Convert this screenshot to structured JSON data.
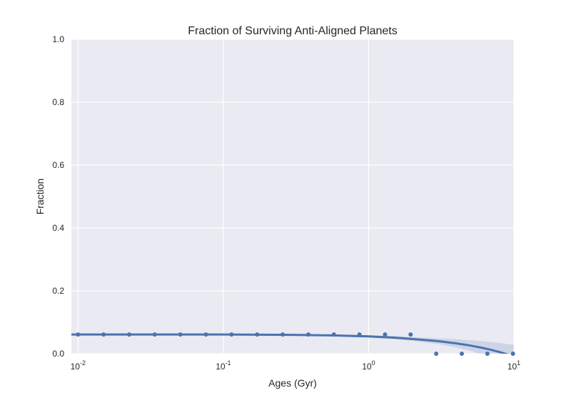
{
  "chart_data": {
    "type": "scatter",
    "title": "Fraction of Surviving Anti-Aligned Planets",
    "xlabel": "Ages (Gyr)",
    "ylabel": "Fraction",
    "xscale": "log",
    "xlim": [
      0.009,
      10
    ],
    "ylim": [
      0,
      1.0
    ],
    "grid": true,
    "legend": "none",
    "x_ticks": [
      {
        "base": "10",
        "exp": "-2",
        "value": 0.01
      },
      {
        "base": "10",
        "exp": "-1",
        "value": 0.1
      },
      {
        "base": "10",
        "exp": "0",
        "value": 1
      },
      {
        "base": "10",
        "exp": "1",
        "value": 10
      }
    ],
    "y_ticks": [
      {
        "label": "0.0",
        "value": 0.0
      },
      {
        "label": "0.2",
        "value": 0.2
      },
      {
        "label": "0.4",
        "value": 0.4
      },
      {
        "label": "0.6",
        "value": 0.6
      },
      {
        "label": "0.8",
        "value": 0.8
      },
      {
        "label": "1.0",
        "value": 1.0
      }
    ],
    "series": [
      {
        "points": [
          {
            "x": 0.01,
            "y": 0.061
          },
          {
            "x": 0.015,
            "y": 0.061
          },
          {
            "x": 0.0225,
            "y": 0.061
          },
          {
            "x": 0.0337,
            "y": 0.061
          },
          {
            "x": 0.0506,
            "y": 0.061
          },
          {
            "x": 0.0759,
            "y": 0.061
          },
          {
            "x": 0.1139,
            "y": 0.061
          },
          {
            "x": 0.1709,
            "y": 0.061
          },
          {
            "x": 0.2563,
            "y": 0.061
          },
          {
            "x": 0.3844,
            "y": 0.061
          },
          {
            "x": 0.5767,
            "y": 0.061
          },
          {
            "x": 0.865,
            "y": 0.061
          },
          {
            "x": 1.2975,
            "y": 0.061
          },
          {
            "x": 1.9462,
            "y": 0.061
          },
          {
            "x": 2.9193,
            "y": 0.0
          },
          {
            "x": 4.3789,
            "y": 0.0
          },
          {
            "x": 6.5684,
            "y": 0.0
          },
          {
            "x": 9.8526,
            "y": 0.0
          }
        ],
        "fit": {
          "x": [
            0.009,
            0.1,
            0.3,
            0.6,
            1.0,
            1.5,
            2.0,
            3.0,
            4.0,
            5.0,
            6.0,
            7.0,
            8.0,
            9.0,
            10.0
          ],
          "y": [
            0.061,
            0.061,
            0.06,
            0.058,
            0.055,
            0.051,
            0.047,
            0.04,
            0.033,
            0.026,
            0.019,
            0.012,
            0.005,
            -0.002,
            -0.009
          ],
          "ci_low": [
            0.058,
            0.059,
            0.058,
            0.055,
            0.051,
            0.046,
            0.041,
            0.031,
            0.02,
            0.009,
            -0.002,
            -0.013,
            -0.024,
            -0.035,
            -0.046
          ],
          "ci_high": [
            0.064,
            0.063,
            0.062,
            0.061,
            0.059,
            0.056,
            0.053,
            0.049,
            0.046,
            0.043,
            0.04,
            0.037,
            0.034,
            0.031,
            0.028
          ]
        }
      }
    ],
    "colors": {
      "background": "#eaeaf2",
      "grid": "#ffffff",
      "point": "#4c72b0",
      "line": "#4c72b0",
      "band": "#4c72b0"
    }
  }
}
